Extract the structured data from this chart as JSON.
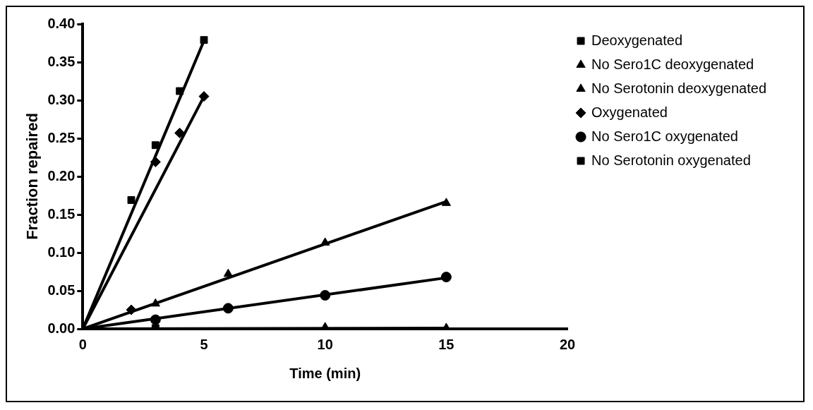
{
  "chart_data": {
    "type": "scatter",
    "xlabel": "Time (min)",
    "ylabel": "Fraction repaired",
    "xlim": [
      0,
      20
    ],
    "xticks": [
      0,
      5,
      10,
      15,
      20
    ],
    "ylim": [
      0,
      0.4
    ],
    "yticks": [
      {
        "value": 0,
        "label": "0.00"
      },
      {
        "value": 0.05,
        "label": "0.05"
      },
      {
        "value": 0.1,
        "label": "0.10"
      },
      {
        "value": 0.15,
        "label": "0.15"
      },
      {
        "value": 0.2,
        "label": "0.20"
      },
      {
        "value": 0.25,
        "label": "0.25"
      },
      {
        "value": 0.3,
        "label": "0.30"
      },
      {
        "value": 0.35,
        "label": "0.35"
      },
      {
        "value": 0.4,
        "label": "0.40"
      }
    ],
    "grid": false,
    "legend": "right",
    "series": [
      {
        "name": "Deoxygenated",
        "color": "#000000",
        "marker": "square",
        "x": [
          2,
          3,
          4,
          5
        ],
        "values": [
          0.169,
          0.241,
          0.312,
          0.379
        ]
      },
      {
        "name": "No Sero1C deoxygenated",
        "color": "#000000",
        "marker": "triangle",
        "x": [
          3,
          6,
          10,
          15
        ],
        "values": [
          0.033,
          0.072,
          0.113,
          0.165
        ]
      },
      {
        "name": "No Serotonin deoxygenated",
        "color": "#000000",
        "marker": "triangle",
        "x": [
          10,
          15
        ],
        "values": [
          0.002,
          0.001
        ]
      },
      {
        "name": "Oxygenated",
        "color": "#000000",
        "marker": "diamond",
        "x": [
          2,
          3,
          4,
          5
        ],
        "values": [
          0.025,
          0.219,
          0.257,
          0.305
        ]
      },
      {
        "name": "No Sero1C oxygenated",
        "color": "#000000",
        "marker": "circle",
        "x": [
          3,
          6,
          10,
          15
        ],
        "values": [
          0.012,
          0.027,
          0.044,
          0.068
        ]
      },
      {
        "name": "No Serotonin oxygenated",
        "color": "#000000",
        "marker": "square",
        "x": [
          3
        ],
        "values": [
          0.001
        ]
      },
      {
        "type": "line",
        "color": "#000000",
        "marker": "none",
        "x": [
          0,
          5
        ],
        "values": [
          0,
          0.378
        ]
      },
      {
        "type": "line",
        "color": "#000000",
        "marker": "none",
        "x": [
          0,
          5
        ],
        "values": [
          0,
          0.305
        ]
      },
      {
        "type": "line",
        "color": "#000000",
        "marker": "none",
        "x": [
          0,
          15
        ],
        "values": [
          0,
          0.167
        ]
      },
      {
        "type": "line",
        "color": "#000000",
        "marker": "none",
        "x": [
          0,
          15
        ],
        "values": [
          0,
          0.067
        ]
      },
      {
        "type": "line",
        "color": "#000000",
        "marker": "none",
        "x": [
          0,
          15
        ],
        "values": [
          0,
          0.001
        ]
      }
    ]
  }
}
